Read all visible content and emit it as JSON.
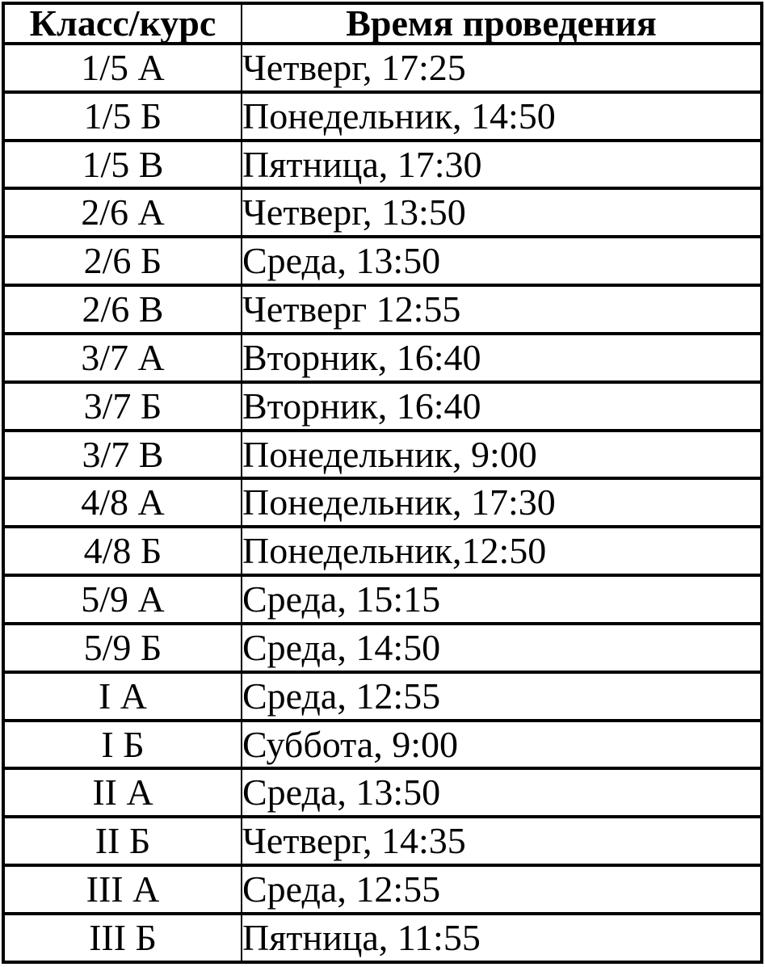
{
  "table": {
    "headers": [
      {
        "label": "Класс/курс"
      },
      {
        "label": "Время проведения"
      }
    ],
    "rows": [
      {
        "class_course": "1/5 А",
        "time": "Четверг, 17:25"
      },
      {
        "class_course": "1/5 Б",
        "time": "Понедельник, 14:50"
      },
      {
        "class_course": "1/5 В",
        "time": "Пятница, 17:30"
      },
      {
        "class_course": "2/6 А",
        "time": "Четверг, 13:50"
      },
      {
        "class_course": "2/6 Б",
        "time": "Среда, 13:50"
      },
      {
        "class_course": "2/6 В",
        "time": "Четверг 12:55"
      },
      {
        "class_course": "3/7 А",
        "time": "Вторник, 16:40"
      },
      {
        "class_course": "3/7 Б",
        "time": "Вторник, 16:40"
      },
      {
        "class_course": "3/7 В",
        "time": "Понедельник, 9:00"
      },
      {
        "class_course": "4/8 А",
        "time": "Понедельник, 17:30"
      },
      {
        "class_course": "4/8 Б",
        "time": "Понедельник,12:50"
      },
      {
        "class_course": "5/9 А",
        "time": "Среда, 15:15"
      },
      {
        "class_course": "5/9 Б",
        "time": "Среда, 14:50"
      },
      {
        "class_course": "I А",
        "time": "Среда, 12:55"
      },
      {
        "class_course": "I Б",
        "time": "Суббота, 9:00"
      },
      {
        "class_course": "II А",
        "time": "Среда, 13:50"
      },
      {
        "class_course": "II Б",
        "time": "Четверг, 14:35"
      },
      {
        "class_course": "III А",
        "time": "Среда, 12:55"
      },
      {
        "class_course": "III Б",
        "time": "Пятница, 11:55"
      }
    ],
    "text_color": "#000000",
    "border_color": "#000000",
    "background_color": "#ffffff"
  }
}
